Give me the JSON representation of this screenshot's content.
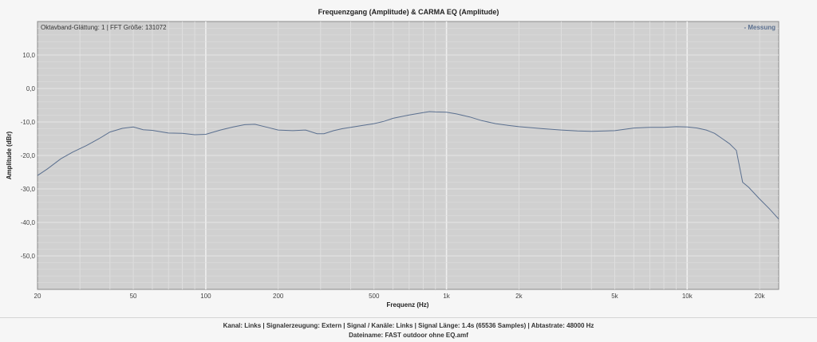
{
  "chart_data": {
    "type": "line",
    "title": "Frequenzgang (Amplitude) & CARMA EQ (Amplitude)",
    "info": "Oktavband-Glättung: 1 | FFT Größe: 131072",
    "xlabel": "Frequenz (Hz)",
    "ylabel": "Amplitude (dBr)",
    "xscale": "log",
    "xlim": [
      20,
      24000
    ],
    "ylim": [
      -60,
      20
    ],
    "x_ticks": [
      {
        "value": 20,
        "label": "20"
      },
      {
        "value": 50,
        "label": "50"
      },
      {
        "value": 100,
        "label": "100"
      },
      {
        "value": 200,
        "label": "200"
      },
      {
        "value": 500,
        "label": "500"
      },
      {
        "value": 1000,
        "label": "1k"
      },
      {
        "value": 2000,
        "label": "2k"
      },
      {
        "value": 5000,
        "label": "5k"
      },
      {
        "value": 10000,
        "label": "10k"
      },
      {
        "value": 20000,
        "label": "20k"
      }
    ],
    "y_ticks": [
      {
        "value": 10,
        "label": "10,0"
      },
      {
        "value": 0,
        "label": "0,0"
      },
      {
        "value": -10,
        "label": "-10,0"
      },
      {
        "value": -20,
        "label": "-20,0"
      },
      {
        "value": -30,
        "label": "-30,0"
      },
      {
        "value": -40,
        "label": "-40,0"
      },
      {
        "value": -50,
        "label": "-50,0"
      }
    ],
    "grid": true,
    "legend": "top-right",
    "colors": {
      "series": "#5a6f8f",
      "plot_bg": "#d0d0d0"
    },
    "series": [
      {
        "name": "Messung",
        "x": [
          20,
          22,
          25,
          28,
          32,
          36,
          40,
          45,
          50,
          55,
          60,
          70,
          80,
          90,
          100,
          115,
          130,
          145,
          160,
          180,
          200,
          230,
          260,
          290,
          310,
          340,
          370,
          400,
          450,
          500,
          550,
          600,
          700,
          800,
          850,
          900,
          1000,
          1100,
          1250,
          1400,
          1600,
          1800,
          2000,
          2500,
          3000,
          3500,
          4000,
          5000,
          6000,
          7000,
          8000,
          9000,
          10000,
          11000,
          12000,
          13000,
          14000,
          15000,
          16000,
          17000,
          18000,
          20000,
          22000,
          24000
        ],
        "y": [
          -26,
          -24,
          -21,
          -19,
          -17,
          -15,
          -13,
          -11.9,
          -11.5,
          -12.3,
          -12.5,
          -13.3,
          -13.4,
          -13.8,
          -13.7,
          -12.4,
          -11.5,
          -10.8,
          -10.7,
          -11.6,
          -12.4,
          -12.6,
          -12.4,
          -13.5,
          -13.5,
          -12.6,
          -12.0,
          -11.6,
          -11.0,
          -10.5,
          -9.8,
          -8.9,
          -7.9,
          -7.2,
          -6.9,
          -7.0,
          -7.1,
          -7.6,
          -8.5,
          -9.6,
          -10.5,
          -11.0,
          -11.4,
          -12.0,
          -12.4,
          -12.7,
          -12.8,
          -12.6,
          -11.8,
          -11.6,
          -11.6,
          -11.4,
          -11.5,
          -11.8,
          -12.4,
          -13.4,
          -15.0,
          -16.5,
          -18.5,
          -28.0,
          -29.5,
          -33.0,
          -36.0,
          -39.0
        ]
      }
    ]
  },
  "footer": {
    "line1": "Kanal: Links  |  Signalerzeugung: Extern   |  Signal / Kanäle: Links  |  Signal Länge: 1.4s (65536 Samples)  |  Abtastrate: 48000 Hz",
    "line2": "Dateiname: FAST outdoor ohne EQ.amf"
  }
}
